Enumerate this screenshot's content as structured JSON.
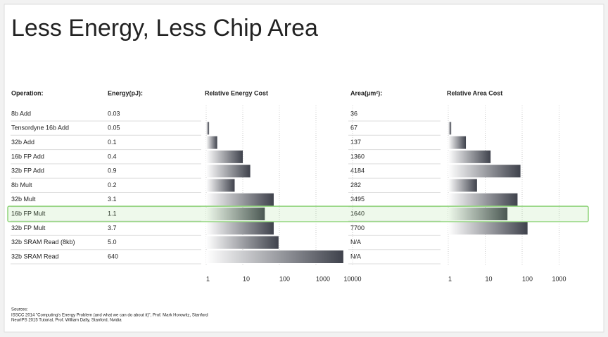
{
  "title": "Less Energy, Less Chip Area",
  "table": {
    "headers": [
      "Operation:",
      "Energy(pJ):",
      "Area(µm²):"
    ],
    "rows": [
      [
        "8b Add",
        "0.03",
        "36"
      ],
      [
        "Tensordyne 16b Add",
        "0.05",
        "67"
      ],
      [
        "32b Add",
        "0.1",
        "137"
      ],
      [
        "16b FP Add",
        "0.4",
        "1360"
      ],
      [
        "32b FP Add",
        "0.9",
        "4184"
      ],
      [
        "8b Mult",
        "0.2",
        "282"
      ],
      [
        "32b Mult",
        "3.1",
        "3495"
      ],
      [
        "16b FP Mult",
        "1.1",
        "1640"
      ],
      [
        "32b FP Mult",
        "3.7",
        "7700"
      ],
      [
        "32b SRAM Read (8kb)",
        "5.0",
        "N/A"
      ],
      [
        "32b SRAM Read",
        "640",
        "N/A"
      ]
    ],
    "highlight_row": 7,
    "highlight_color": "#8fd47a"
  },
  "chart_data": [
    {
      "type": "bar",
      "orientation": "horizontal",
      "title": "Relative Energy Cost",
      "log": true,
      "grid": true,
      "color": "#3f424c",
      "values": [
        1,
        1.2,
        2,
        10,
        16,
        6,
        70,
        40,
        70,
        95,
        5600
      ],
      "xlim": [
        1,
        10000
      ],
      "xticks": [
        1,
        10,
        100,
        1000,
        10000
      ]
    },
    {
      "type": "bar",
      "orientation": "horizontal",
      "title": "Relative Area Cost",
      "log": true,
      "grid": true,
      "color": "#3f424c",
      "values": [
        1,
        1.2,
        3,
        14,
        90,
        6,
        75,
        40,
        140,
        null,
        null
      ],
      "xlim": [
        1,
        1000
      ],
      "xticks": [
        1,
        10,
        100,
        1000
      ]
    }
  ],
  "sources": {
    "label": "Sources:",
    "lines": [
      "ISSCC 2014 \"Computing's Energy Problem (and what we can do about it)\", Prof. Mark Horowitz, Stanford",
      "NeurIPS 2015 Tutorial, Prof. William Dally, Stanford, Nvidia"
    ]
  }
}
